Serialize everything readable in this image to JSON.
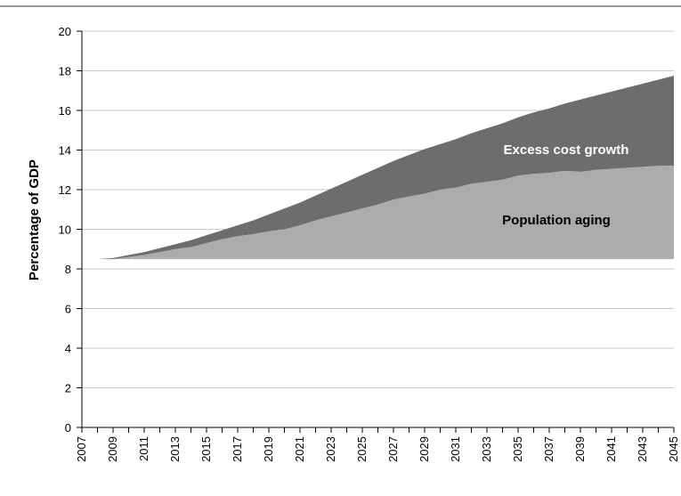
{
  "chart_data": {
    "type": "area",
    "title": "",
    "xlabel": "",
    "ylabel": "Percentage of GDP",
    "ylim": [
      0,
      20
    ],
    "xlim": [
      2007,
      2045
    ],
    "grid": "horizontal",
    "baseline": 8.5,
    "x": [
      2007,
      2008,
      2009,
      2010,
      2011,
      2012,
      2013,
      2014,
      2015,
      2016,
      2017,
      2018,
      2019,
      2020,
      2021,
      2022,
      2023,
      2024,
      2025,
      2026,
      2027,
      2028,
      2029,
      2030,
      2031,
      2032,
      2033,
      2034,
      2035,
      2036,
      2037,
      2038,
      2039,
      2040,
      2041,
      2042,
      2043,
      2044,
      2045
    ],
    "x_tick_labels": [
      "2007",
      "2009",
      "2011",
      "2013",
      "2015",
      "2017",
      "2019",
      "2021",
      "2023",
      "2025",
      "2027",
      "2029",
      "2031",
      "2033",
      "2035",
      "2037",
      "2039",
      "2041",
      "2043",
      "2045"
    ],
    "y_ticks": [
      0,
      2,
      4,
      6,
      8,
      10,
      12,
      14,
      16,
      18,
      20
    ],
    "series": [
      {
        "name": "Population aging",
        "color": "#aaacae",
        "values": [
          8.5,
          8.5,
          8.5,
          8.6,
          8.7,
          8.85,
          9.0,
          9.1,
          9.3,
          9.5,
          9.65,
          9.75,
          9.9,
          10.0,
          10.2,
          10.45,
          10.65,
          10.85,
          11.05,
          11.25,
          11.5,
          11.65,
          11.8,
          12.0,
          12.1,
          12.3,
          12.4,
          12.5,
          12.7,
          12.8,
          12.85,
          12.95,
          12.9,
          13.0,
          13.05,
          13.1,
          13.15,
          13.2,
          13.2
        ]
      },
      {
        "name": "Excess cost growth",
        "color": "#6b6d6f",
        "values": [
          8.5,
          8.5,
          8.55,
          8.7,
          8.85,
          9.05,
          9.25,
          9.45,
          9.7,
          9.95,
          10.2,
          10.45,
          10.75,
          11.05,
          11.35,
          11.7,
          12.05,
          12.4,
          12.75,
          13.1,
          13.45,
          13.75,
          14.05,
          14.3,
          14.55,
          14.85,
          15.1,
          15.35,
          15.65,
          15.9,
          16.1,
          16.35,
          16.55,
          16.75,
          16.95,
          17.15,
          17.35,
          17.55,
          17.75
        ]
      }
    ]
  }
}
